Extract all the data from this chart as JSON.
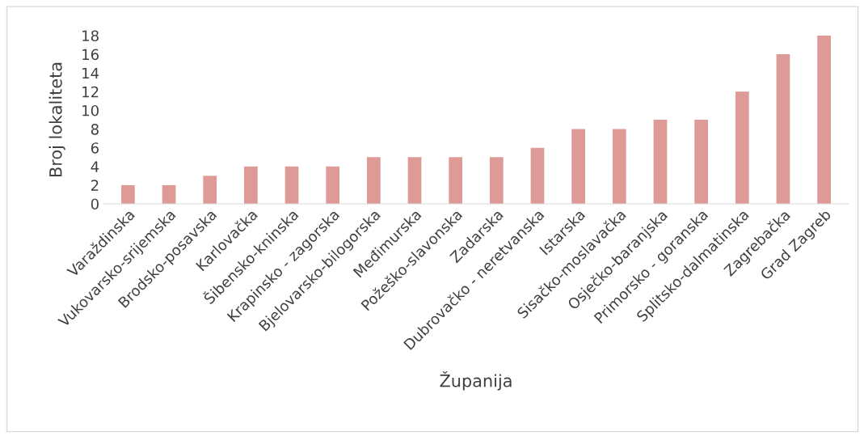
{
  "chart_data": {
    "type": "bar",
    "xlabel": "Županija",
    "ylabel": "Broj lokaliteta",
    "categories": [
      "Varaždinska",
      "Vukovarsko-srijemska",
      "Brodsko-posavska",
      "Karlovačka",
      "Šibensko-kninska",
      "Krapinsko - zagorska",
      "Bjelovarsko-bilogorska",
      "Međimurska",
      "Požeško-slavonska",
      "Zadarska",
      "Dubrovačko - neretvanska",
      "Istarska",
      "Sisačko-moslavačka",
      "Osječko-baranjska",
      "Primorsko - goranska",
      "Splitsko-dalmatinska",
      "Zagrebačka",
      "Grad Zagreb"
    ],
    "values": [
      2,
      2,
      3,
      4,
      4,
      4,
      5,
      5,
      5,
      5,
      6,
      8,
      8,
      9,
      9,
      12,
      16,
      18
    ],
    "color": "#de9a96",
    "ylim": [
      0,
      18
    ],
    "yticks": [
      0,
      2,
      4,
      6,
      8,
      10,
      12,
      14,
      16,
      18
    ],
    "grid": false,
    "legend": false
  }
}
